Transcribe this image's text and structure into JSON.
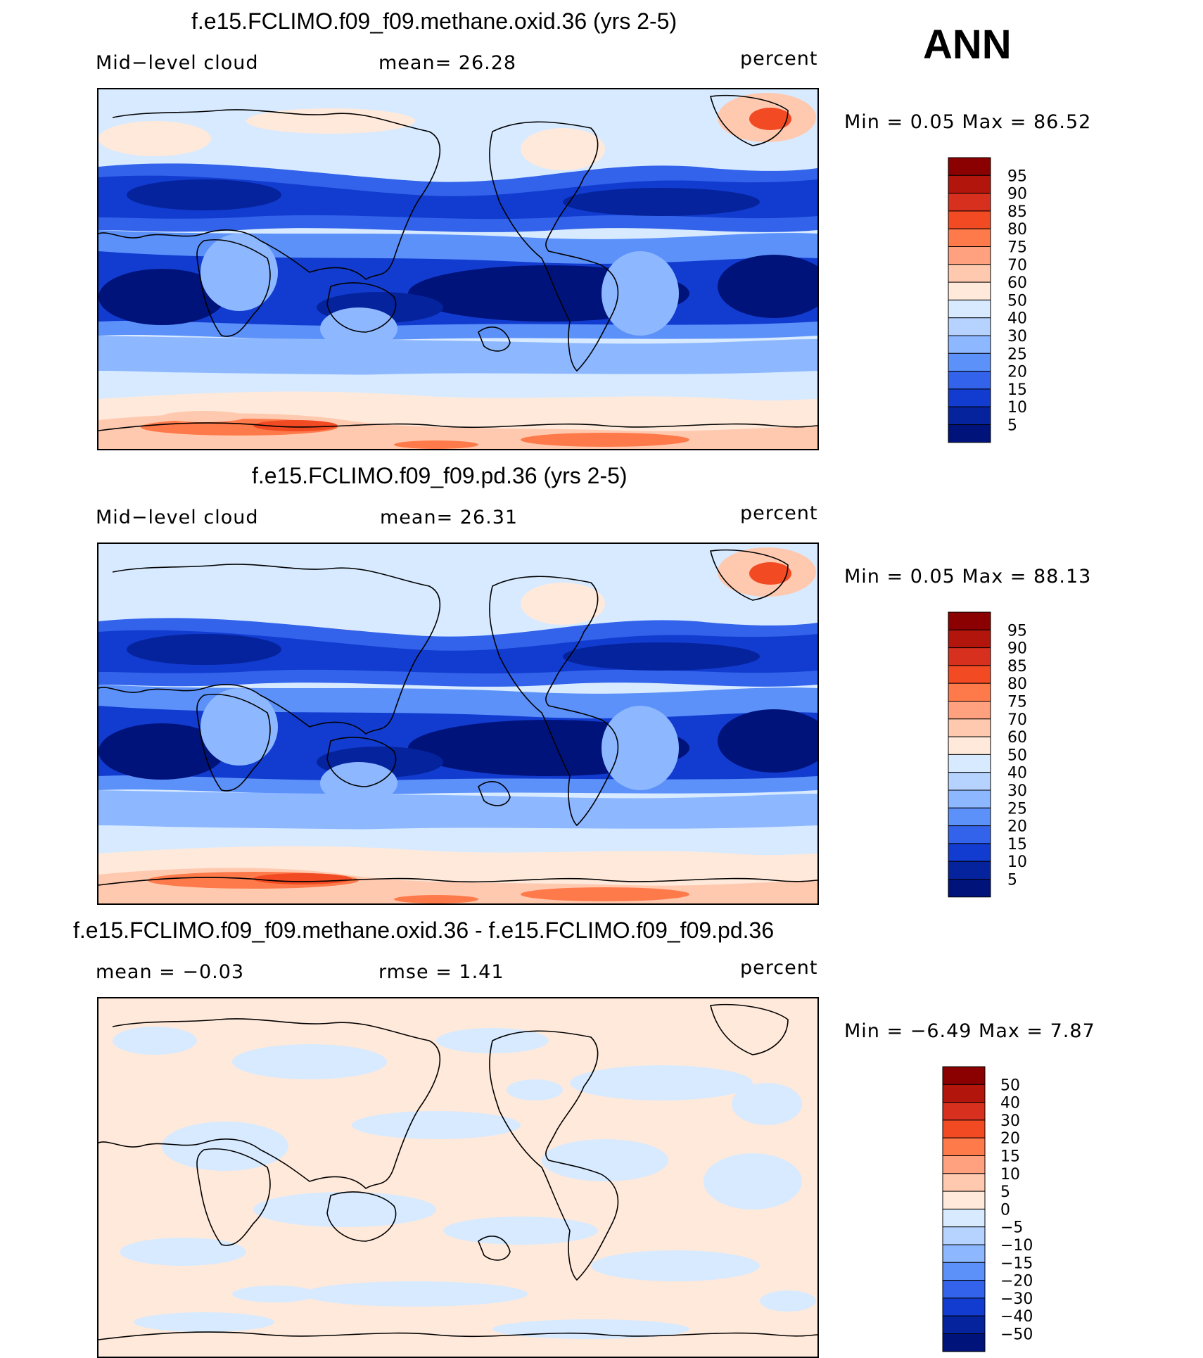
{
  "season": "ANN",
  "panels": [
    {
      "title": "f.e15.FCLIMO.f09_f09.methane.oxid.36 (yrs 2-5)",
      "left_label": "Mid−level  cloud",
      "center_label": "mean=   26.28",
      "units": "percent",
      "minmax": "Min  =     0.05  Max  =     86.52",
      "colorbar": {
        "labels": [
          "95",
          "90",
          "85",
          "80",
          "75",
          "70",
          "60",
          "50",
          "40",
          "30",
          "25",
          "20",
          "15",
          "10",
          "5"
        ],
        "colors": [
          "#8B0000",
          "#B2150B",
          "#D8301E",
          "#F24A23",
          "#FF7A4A",
          "#FFA07E",
          "#FFC9B0",
          "#FFE9DA",
          "#D7EAFF",
          "#B6D3FF",
          "#8DB7FF",
          "#5C91FA",
          "#3263EA",
          "#123CD0",
          "#05239C",
          "#00137A"
        ]
      }
    },
    {
      "title": "f.e15.FCLIMO.f09_f09.pd.36 (yrs 2-5)",
      "left_label": "Mid−level  cloud",
      "center_label": "mean=   26.31",
      "units": "percent",
      "minmax": "Min  =     0.05  Max  =     88.13",
      "colorbar": {
        "labels": [
          "95",
          "90",
          "85",
          "80",
          "75",
          "70",
          "60",
          "50",
          "40",
          "30",
          "25",
          "20",
          "15",
          "10",
          "5"
        ],
        "colors": [
          "#8B0000",
          "#B2150B",
          "#D8301E",
          "#F24A23",
          "#FF7A4A",
          "#FFA07E",
          "#FFC9B0",
          "#FFE9DA",
          "#D7EAFF",
          "#B6D3FF",
          "#8DB7FF",
          "#5C91FA",
          "#3263EA",
          "#123CD0",
          "#05239C",
          "#00137A"
        ]
      }
    },
    {
      "title": "f.e15.FCLIMO.f09_f09.methane.oxid.36 - f.e15.FCLIMO.f09_f09.pd.36",
      "left_label": "mean  =    −0.03",
      "center_label": "rmse  =     1.41",
      "units": "percent",
      "minmax": "Min  =   −6.49  Max  =     7.87",
      "colorbar": {
        "labels": [
          "50",
          "40",
          "30",
          "20",
          "15",
          "10",
          "5",
          "0",
          "−5",
          "−10",
          "−15",
          "−20",
          "−30",
          "−40",
          "−50"
        ],
        "colors": [
          "#8B0000",
          "#B2150B",
          "#D8301E",
          "#F24A23",
          "#FF7A4A",
          "#FFA07E",
          "#FFC9B0",
          "#FFE9DA",
          "#D7EAFF",
          "#B6D3FF",
          "#8DB7FF",
          "#5C91FA",
          "#3263EA",
          "#123CD0",
          "#05239C",
          "#00137A"
        ]
      }
    }
  ]
}
